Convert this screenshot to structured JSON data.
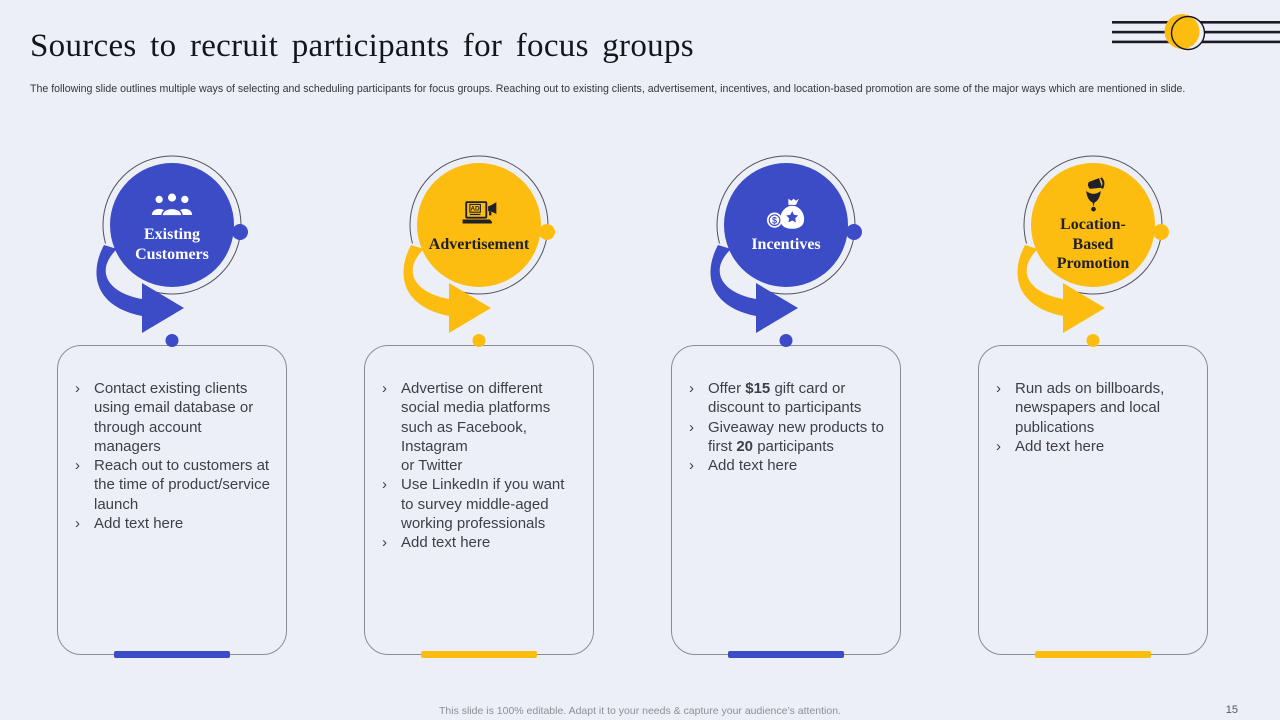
{
  "slide": {
    "title": "Sources to recruit participants for focus groups",
    "subtitle": "The following slide outlines multiple ways of selecting and scheduling participants for focus groups. Reaching out to existing clients, advertisement, incentives, and location-based promotion are some of the major ways which are mentioned in slide.",
    "footer_note": "This slide is 100% editable. Adapt it to your needs & capture your audience’s attention.",
    "page_number": "15",
    "bullet_glyph": "›"
  },
  "background": "#EDEFF7",
  "accents": {
    "blue": {
      "fill": "#3C4BC6",
      "ink": "#FFFFFF"
    },
    "yellow": {
      "fill": "#FDBD10",
      "ink": "#20202B"
    }
  },
  "decoration": {
    "line_color": "#1A1A28",
    "circle_fill": "#FDBD10",
    "ring_stroke": "#15151F"
  },
  "columns": [
    {
      "id": "existing-customers",
      "accent": "blue",
      "icon": "people-group-icon",
      "label_lines": [
        "Existing",
        "Customers"
      ],
      "bullets": [
        [
          {
            "text": "Contact existing clients using email database or through account managers",
            "bold": false
          }
        ],
        [
          {
            "text": "Reach out to customers at the time of product/service launch",
            "bold": false
          }
        ],
        [
          {
            "text": "Add text here",
            "bold": false
          }
        ]
      ]
    },
    {
      "id": "advertisement",
      "accent": "yellow",
      "icon": "ad-laptop-icon",
      "label_lines": [
        "Advertisement"
      ],
      "bullets": [
        [
          {
            "text": "Advertise on different social media platforms such as Facebook, Instagram\nor Twitter",
            "bold": false
          }
        ],
        [
          {
            "text": "Use LinkedIn if you want to survey middle-aged working professionals",
            "bold": false
          }
        ],
        [
          {
            "text": "Add text here",
            "bold": false
          }
        ]
      ]
    },
    {
      "id": "incentives",
      "accent": "blue",
      "icon": "money-bag-icon",
      "label_lines": [
        "Incentives"
      ],
      "bullets": [
        [
          {
            "text": "Offer ",
            "bold": false
          },
          {
            "text": "$15",
            "bold": true
          },
          {
            "text": " gift card or discount to participants",
            "bold": false
          }
        ],
        [
          {
            "text": "Giveaway new products to first ",
            "bold": false
          },
          {
            "text": "20",
            "bold": true
          },
          {
            "text": " participants",
            "bold": false
          }
        ],
        [
          {
            "text": "Add text here",
            "bold": false
          }
        ]
      ]
    },
    {
      "id": "location-based-promotion",
      "accent": "yellow",
      "icon": "location-megaphone-icon",
      "label_lines": [
        "Location-",
        "Based",
        "Promotion"
      ],
      "bullets": [
        [
          {
            "text": "Run ads on billboards, newspapers and local publications",
            "bold": false
          }
        ],
        [
          {
            "text": "Add text here",
            "bold": false
          }
        ]
      ]
    }
  ]
}
